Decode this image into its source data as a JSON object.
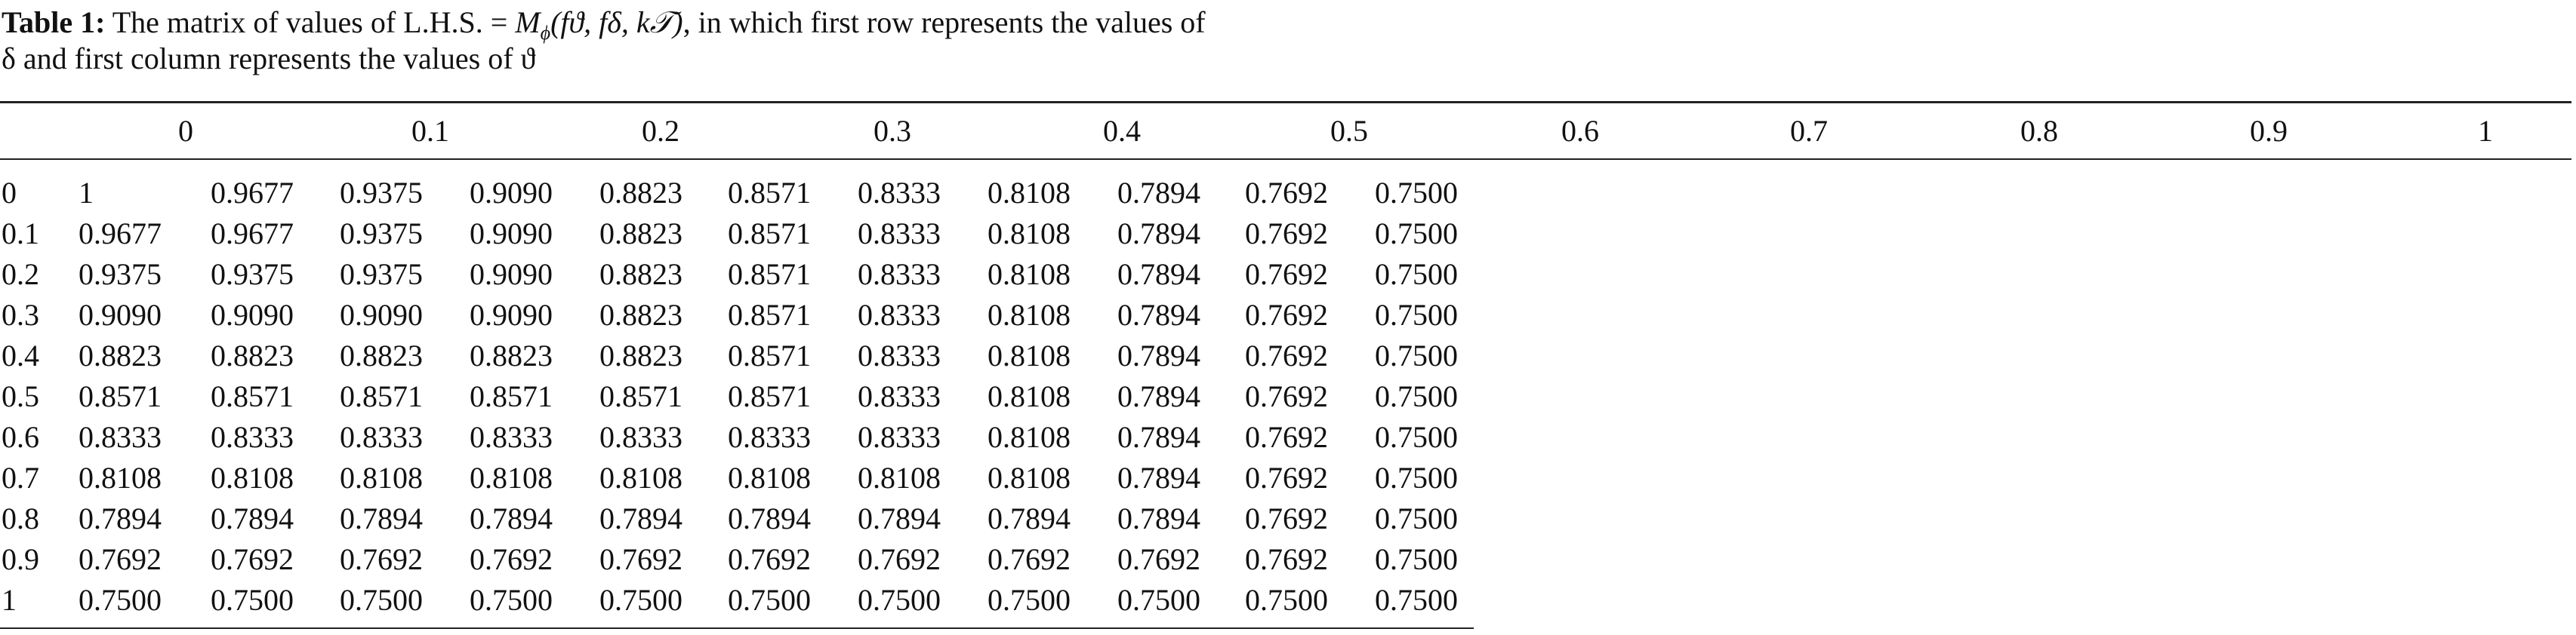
{
  "caption": {
    "label": "Table 1:",
    "text_before": "The matrix of values of L.H.S. = ",
    "math_symbol": "M",
    "math_subscript": "ϕ",
    "math_args": "(fϑ, fδ, k𝒯)",
    "text_after": ", in which first row represents the values of",
    "line2": "δ and first column represents the values of ϑ"
  },
  "table": {
    "header": [
      "0",
      "0.1",
      "0.2",
      "0.3",
      "0.4",
      "0.5",
      "0.6",
      "0.7",
      "0.8",
      "0.9",
      "1"
    ],
    "rows": [
      [
        "0",
        "1",
        "0.9677",
        "0.9375",
        "0.9090",
        "0.8823",
        "0.8571",
        "0.8333",
        "0.8108",
        "0.7894",
        "0.7692",
        "0.7500"
      ],
      [
        "0.1",
        "0.9677",
        "0.9677",
        "0.9375",
        "0.9090",
        "0.8823",
        "0.8571",
        "0.8333",
        "0.8108",
        "0.7894",
        "0.7692",
        "0.7500"
      ],
      [
        "0.2",
        "0.9375",
        "0.9375",
        "0.9375",
        "0.9090",
        "0.8823",
        "0.8571",
        "0.8333",
        "0.8108",
        "0.7894",
        "0.7692",
        "0.7500"
      ],
      [
        "0.3",
        "0.9090",
        "0.9090",
        "0.9090",
        "0.9090",
        "0.8823",
        "0.8571",
        "0.8333",
        "0.8108",
        "0.7894",
        "0.7692",
        "0.7500"
      ],
      [
        "0.4",
        "0.8823",
        "0.8823",
        "0.8823",
        "0.8823",
        "0.8823",
        "0.8571",
        "0.8333",
        "0.8108",
        "0.7894",
        "0.7692",
        "0.7500"
      ],
      [
        "0.5",
        "0.8571",
        "0.8571",
        "0.8571",
        "0.8571",
        "0.8571",
        "0.8571",
        "0.8333",
        "0.8108",
        "0.7894",
        "0.7692",
        "0.7500"
      ],
      [
        "0.6",
        "0.8333",
        "0.8333",
        "0.8333",
        "0.8333",
        "0.8333",
        "0.8333",
        "0.8333",
        "0.8108",
        "0.7894",
        "0.7692",
        "0.7500"
      ],
      [
        "0.7",
        "0.8108",
        "0.8108",
        "0.8108",
        "0.8108",
        "0.8108",
        "0.8108",
        "0.8108",
        "0.8108",
        "0.7894",
        "0.7692",
        "0.7500"
      ],
      [
        "0.8",
        "0.7894",
        "0.7894",
        "0.7894",
        "0.7894",
        "0.7894",
        "0.7894",
        "0.7894",
        "0.7894",
        "0.7894",
        "0.7692",
        "0.7500"
      ],
      [
        "0.9",
        "0.7692",
        "0.7692",
        "0.7692",
        "0.7692",
        "0.7692",
        "0.7692",
        "0.7692",
        "0.7692",
        "0.7692",
        "0.7692",
        "0.7500"
      ],
      [
        "1",
        "0.7500",
        "0.7500",
        "0.7500",
        "0.7500",
        "0.7500",
        "0.7500",
        "0.7500",
        "0.7500",
        "0.7500",
        "0.7500",
        "0.7500"
      ]
    ]
  }
}
